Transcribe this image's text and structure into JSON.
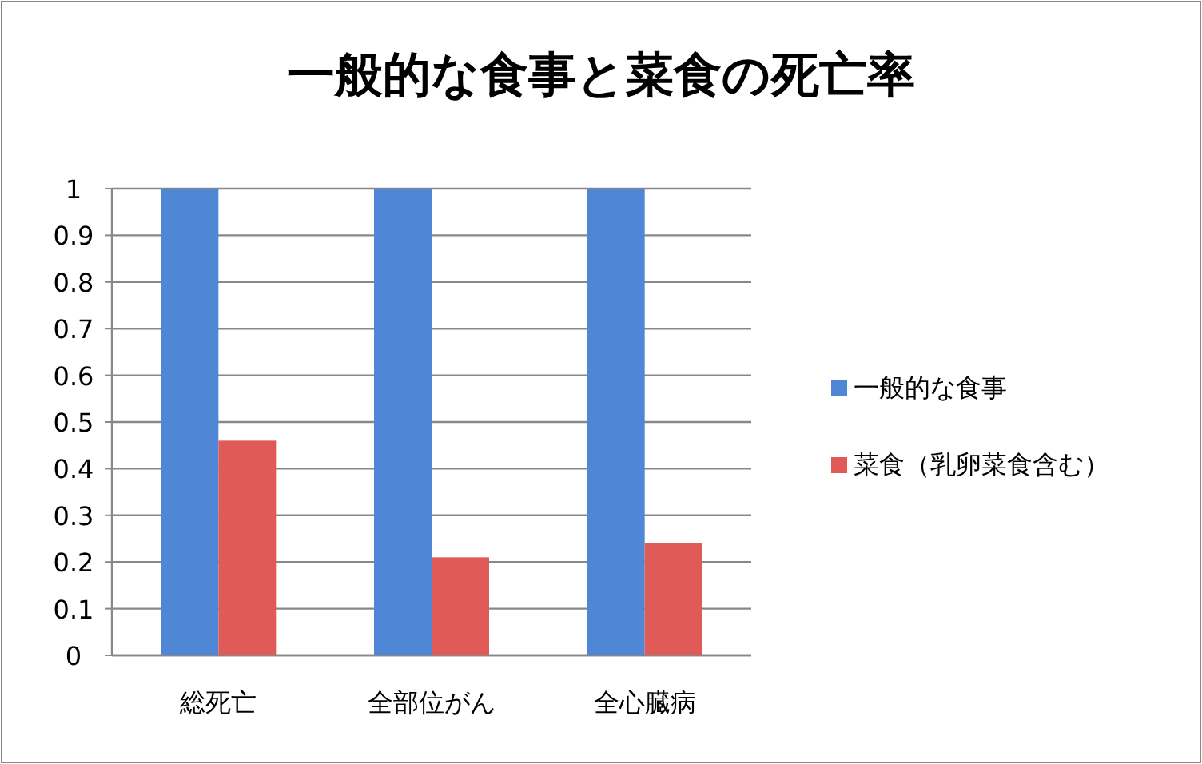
{
  "chart_data": {
    "type": "bar",
    "title": "一般的な食事と菜食の死亡率",
    "categories": [
      "総死亡",
      "全部位がん",
      "全心臓病"
    ],
    "series": [
      {
        "name": "一般的な食事",
        "color": "#4f86d6",
        "values": [
          1,
          1,
          1
        ]
      },
      {
        "name": "菜食（乳卵菜食含む）",
        "color": "#e05a58",
        "values": [
          0.46,
          0.21,
          0.24
        ]
      }
    ],
    "ylim": [
      0,
      1
    ],
    "yticks": [
      0,
      0.1,
      0.2,
      0.3,
      0.4,
      0.5,
      0.6,
      0.7,
      0.8,
      0.9,
      1
    ],
    "grid": "y",
    "legend": "right"
  }
}
